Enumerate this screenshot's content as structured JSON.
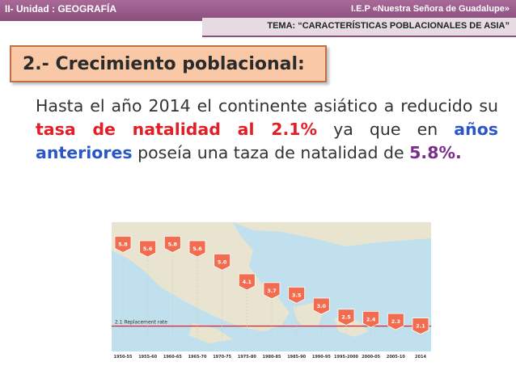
{
  "header": {
    "unit": "II- Unidad : GEOGRAFÍA",
    "school": "I.E.P «Nuestra Señora de Guadalupe»",
    "tema": "TEMA: “CARACTERÍSTICAS POBLACIONALES DE ASIA”"
  },
  "slide": {
    "title": "2.- Crecimiento poblacional:",
    "body": {
      "p1": "Hasta el año 2014 el continente asiático a reducido su ",
      "h1": "tasa de natalidad al 2.1%",
      "p2": " ya que en ",
      "h2": "años anteriores",
      "p3": " poseía una taza de natalidad de ",
      "h3": "5.8%."
    }
  },
  "colors": {
    "header_band": "#8a4d7c",
    "title_bg": "#f9c8a6",
    "highlight_red": "#e41e26",
    "highlight_blue": "#2b56c8",
    "highlight_purple": "#7a2d8a",
    "chart_marker": "#f26c4f",
    "map_sea": "#bfe0ec",
    "map_land": "#e9e4cf"
  },
  "chart_data": {
    "type": "scatter",
    "replacement_label": "2.1 Replacement rate",
    "replacement_value": 2.1,
    "categories": [
      "1950-55",
      "1955-60",
      "1960-65",
      "1965-70",
      "1970-75",
      "1975-80",
      "1980-85",
      "1985-90",
      "1990-95",
      "1995-2000",
      "2000-05",
      "2005-10",
      "2014"
    ],
    "values": [
      5.8,
      5.6,
      5.8,
      5.6,
      5.0,
      4.1,
      3.7,
      3.5,
      3.0,
      2.5,
      2.4,
      2.3,
      2.1
    ],
    "labels": [
      "5.8",
      "5.6",
      "5.8",
      "5.6",
      "5.0",
      "4.1",
      "3.7",
      "3.5",
      "3.0",
      "2.5",
      "2.4",
      "2.3",
      "2.1"
    ],
    "ylim": [
      1.5,
      6.0
    ]
  }
}
